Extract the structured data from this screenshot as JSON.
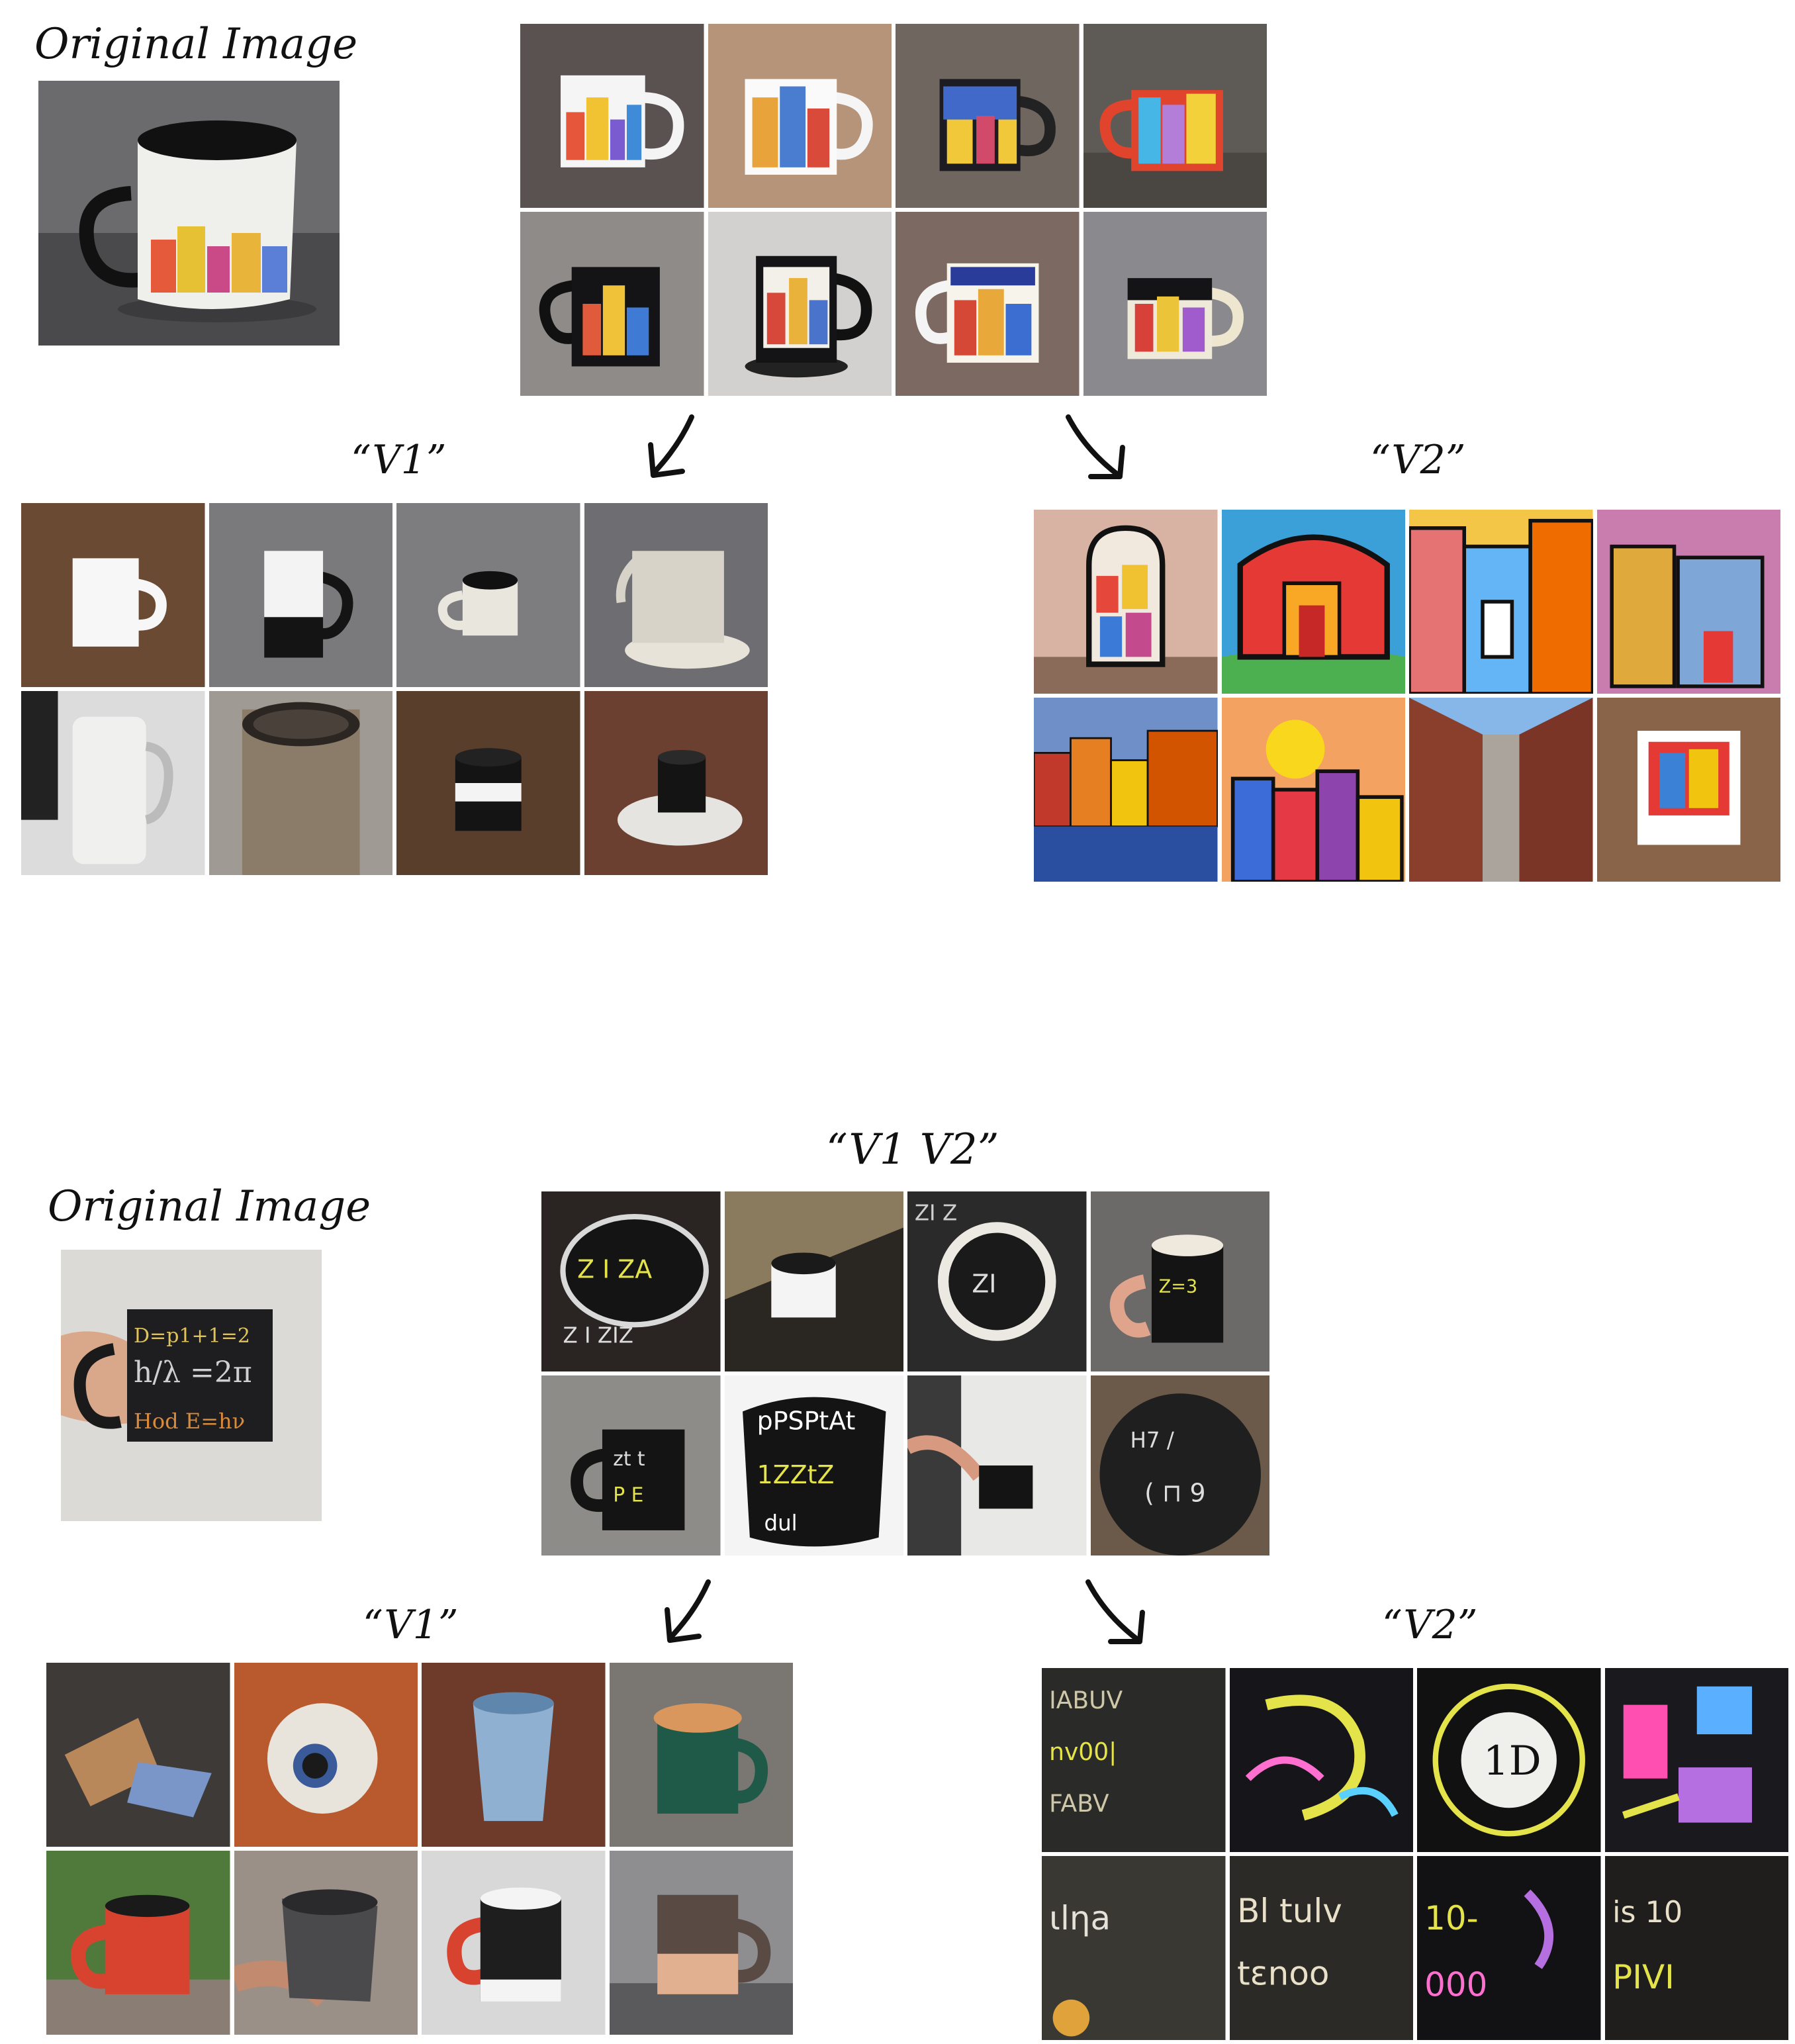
{
  "labels": {
    "original_image": "Original Image",
    "v1": "“V1”",
    "v2": "“V2”",
    "v1_v2": "“V1 V2”"
  },
  "section_top": {
    "original": "city-mug-photo",
    "combined_grid": [
      "mug-buildings",
      "mug-buildings",
      "mug-buildings",
      "mug-buildings",
      "mug-buildings-black",
      "mug-buildings-black",
      "mug-buildings",
      "mug-buildings"
    ],
    "v1_grid": [
      "plain-white-mug",
      "black-white-mug",
      "small-cup",
      "mug-on-stand",
      "white-tumbler",
      "steel-tumbler",
      "striped-speaker",
      "black-puck-on-base"
    ],
    "v2_grid": [
      "cartoon-building-mug",
      "cartoon-townscape",
      "colorful-facades",
      "cartoon-house",
      "harbor-city",
      "sunset-city",
      "brick-alley",
      "sticker-card"
    ]
  },
  "section_bottom": {
    "original": "chalk-formula-mug-in-hand",
    "combined_grid": [
      "chalk-mug-interior",
      "cup-on-chalk-table",
      "chalk-text-ring",
      "chalk-mug-held",
      "chalk-mug-desk",
      "chalk-letters-bowl",
      "hand-holding-black-mug",
      "chalk-text-disc"
    ],
    "v1_grid": [
      "tipped-bamboo-cup",
      "white-cup-topdown",
      "blue-cup",
      "green-mug-lid",
      "red-black-mug",
      "grey-mug-hand",
      "black-red-mug",
      "brown-mug"
    ],
    "v2_grid": [
      "chalk-letter-pattern",
      "chalk-neon-letters",
      "seal-1d",
      "chalk-neon-collage",
      "chalk-scribbles",
      "chalk-words",
      "neon-numbers",
      "chalk-numerals"
    ]
  },
  "colors": {
    "arrow": "#111111",
    "grid_gap": "#ffffff"
  }
}
